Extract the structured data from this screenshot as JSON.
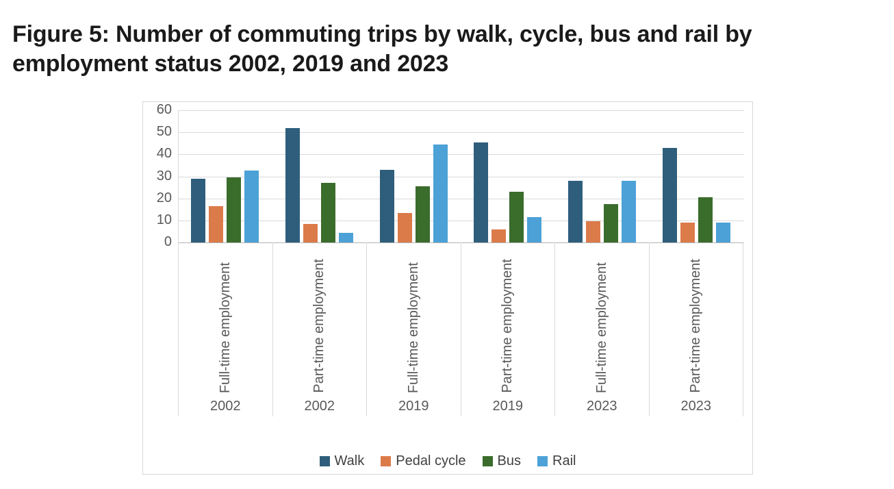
{
  "title": {
    "text": "Figure 5: Number of commuting trips by walk, cycle, bus and rail by employment status 2002, 2019 and 2023",
    "lines": [
      "Figure 5: Number of commuting trips by walk, cycle, bus and rail by",
      "employment status 2002, 2019 and 2023"
    ]
  },
  "colors": {
    "walk": "#2e5e7c",
    "pedal_cycle": "#dc7b4a",
    "bus": "#3a6c2c",
    "rail": "#4ca1d7",
    "axis_text": "#595959",
    "gridline": "#d9d9d9",
    "panel_border": "#d6d6d6"
  },
  "chart_data": {
    "type": "bar",
    "title": "Figure 5: Number of commuting trips by walk, cycle, bus and rail by employment status 2002, 2019 and 2023",
    "xlabel": "",
    "ylabel": "",
    "grid": true,
    "legend_position": "bottom",
    "y_axis": {
      "min": 0,
      "max": 60,
      "step": 10,
      "ticks": [
        60,
        50,
        40,
        30,
        20,
        10,
        0
      ]
    },
    "categories": [
      {
        "label": "Full-time employment",
        "year": "2002"
      },
      {
        "label": "Part-time employment",
        "year": "2002"
      },
      {
        "label": "Full-time employment",
        "year": "2019"
      },
      {
        "label": "Part-time employment",
        "year": "2019"
      },
      {
        "label": "Full-time employment",
        "year": "2023"
      },
      {
        "label": "Part-time employment",
        "year": "2023"
      }
    ],
    "series": [
      {
        "name": "Walk",
        "color": "#2e5e7c",
        "values": [
          29,
          52,
          33,
          45.5,
          28,
          43
        ]
      },
      {
        "name": "Pedal cycle",
        "color": "#dc7b4a",
        "values": [
          16.5,
          8.5,
          13.5,
          6,
          9.5,
          9
        ]
      },
      {
        "name": "Bus",
        "color": "#3a6c2c",
        "values": [
          29.5,
          27,
          25.5,
          23,
          17.5,
          20.5
        ]
      },
      {
        "name": "Rail",
        "color": "#4ca1d7",
        "values": [
          32.5,
          4.5,
          44.5,
          11.5,
          28,
          9
        ]
      }
    ]
  }
}
